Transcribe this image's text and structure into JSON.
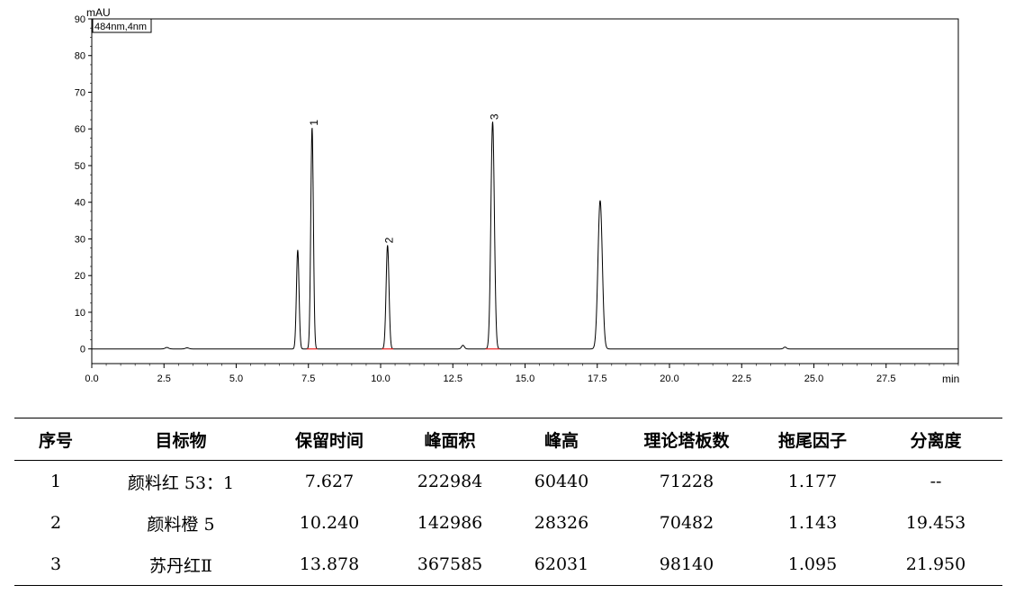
{
  "chart_data": {
    "type": "line",
    "ylabel": "mAU",
    "xlabel": "min",
    "legend": "484nm,4nm",
    "xlim": [
      0.0,
      30.0
    ],
    "ylim": [
      -4,
      90
    ],
    "xticks": [
      0.0,
      2.5,
      5.0,
      7.5,
      10.0,
      12.5,
      15.0,
      17.5,
      20.0,
      22.5,
      25.0,
      27.5
    ],
    "xtick_labels": [
      "0.0",
      "2.5",
      "5.0",
      "7.5",
      "10.0",
      "12.5",
      "15.0",
      "17.5",
      "20.0",
      "22.5",
      "25.0",
      "27.5"
    ],
    "yticks": [
      0,
      10,
      20,
      30,
      40,
      50,
      60,
      70,
      80,
      90
    ],
    "ytick_labels": [
      "0",
      "10",
      "20",
      "30",
      "40",
      "50",
      "60",
      "70",
      "80",
      "90"
    ],
    "grid": false,
    "baseline": 0,
    "peaks": [
      {
        "rt": 7.13,
        "height": 27,
        "width": 0.045,
        "label": ""
      },
      {
        "rt": 7.627,
        "height": 60.4,
        "width": 0.045,
        "label": "1"
      },
      {
        "rt": 10.24,
        "height": 28.3,
        "width": 0.05,
        "label": "2"
      },
      {
        "rt": 13.878,
        "height": 62.0,
        "width": 0.06,
        "label": "3"
      },
      {
        "rt": 17.6,
        "height": 40.5,
        "width": 0.075,
        "label": ""
      },
      {
        "rt": 2.6,
        "height": 0.4,
        "width": 0.06,
        "label": ""
      },
      {
        "rt": 3.3,
        "height": 0.3,
        "width": 0.06,
        "label": ""
      },
      {
        "rt": 12.85,
        "height": 1.0,
        "width": 0.05,
        "label": ""
      },
      {
        "rt": 24.0,
        "height": 0.5,
        "width": 0.05,
        "label": ""
      }
    ],
    "line_color": "#000000",
    "integration_baseline_color": "#e8201f"
  },
  "table": {
    "headers": [
      "序号",
      "目标物",
      "保留时间",
      "峰面积",
      "峰高",
      "理论塔板数",
      "拖尾因子",
      "分离度"
    ],
    "rows": [
      [
        "1",
        "颜料红 53：1",
        "7.627",
        "222984",
        "60440",
        "71228",
        "1.177",
        "--"
      ],
      [
        "2",
        "颜料橙 5",
        "10.240",
        "142986",
        "28326",
        "70482",
        "1.143",
        "19.453"
      ],
      [
        "3",
        "苏丹红Ⅱ",
        "13.878",
        "367585",
        "62031",
        "98140",
        "1.095",
        "21.950"
      ]
    ]
  }
}
